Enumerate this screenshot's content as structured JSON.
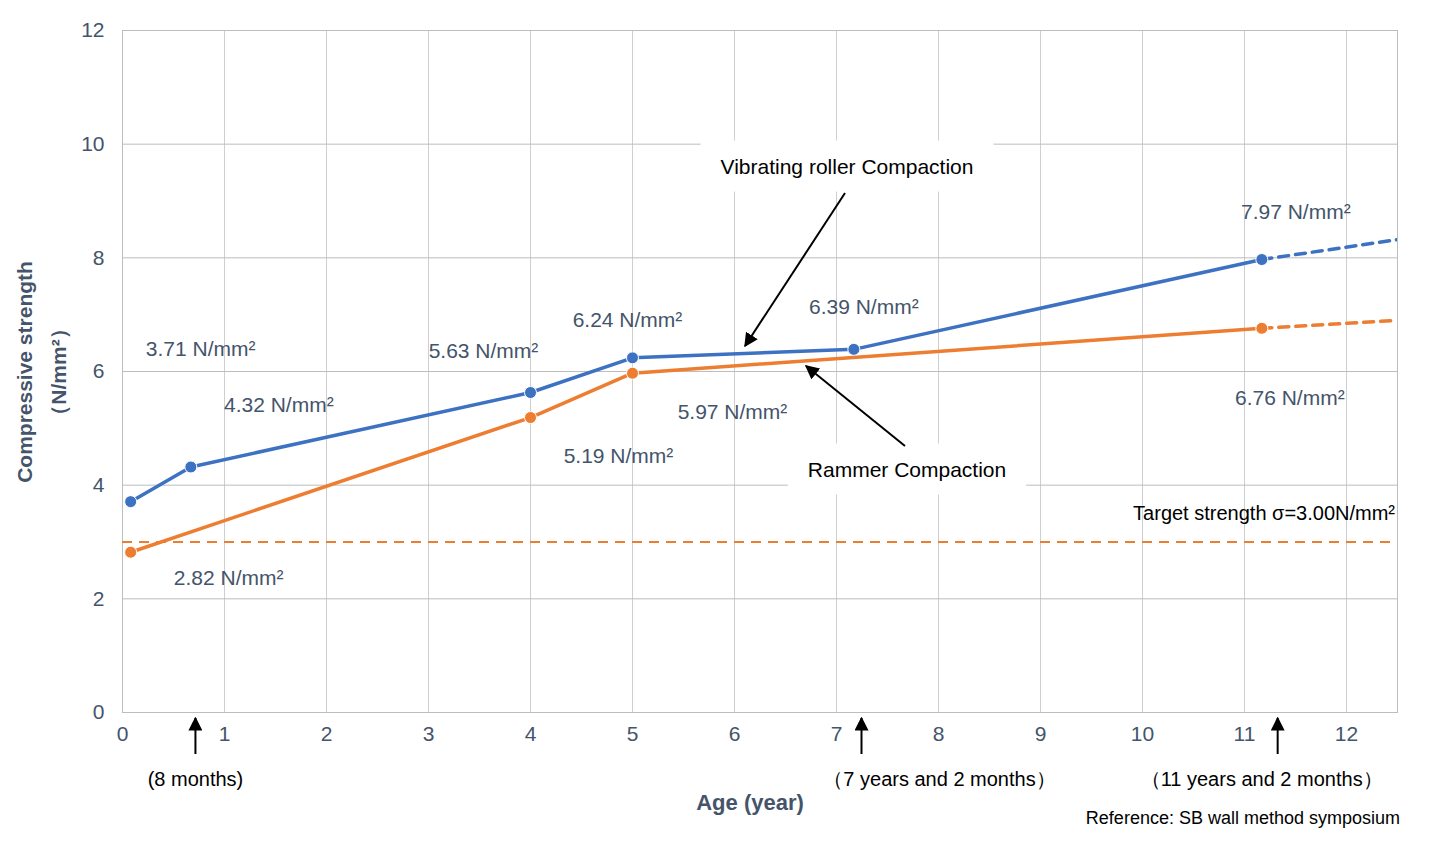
{
  "chart_data": {
    "type": "line",
    "x_label": "Age (year)",
    "y_label": "Compressive strength\n（N/mm²）",
    "xlim": [
      0,
      12.5
    ],
    "xticks": [
      0,
      1,
      2,
      3,
      4,
      5,
      6,
      7,
      8,
      9,
      10,
      11,
      12
    ],
    "ylim": [
      0,
      12
    ],
    "yticks": [
      0,
      2,
      4,
      6,
      8,
      10,
      12
    ],
    "grid": true,
    "data_labels": true,
    "series": [
      {
        "name": "Vibrating roller Compaction",
        "color": "#3d72c2",
        "marker": "circle",
        "line_style": "solid",
        "x": [
          0.08,
          0.67,
          4,
          5,
          7.17,
          11.17
        ],
        "values": [
          3.71,
          4.32,
          5.63,
          6.24,
          6.39,
          7.97
        ],
        "value_labels": [
          "3.71 N/mm²",
          "4.32 N/mm²",
          "5.63 N/mm²",
          "6.24 N/mm²",
          "6.39 N/mm²",
          "7.97 N/mm²"
        ],
        "trend": {
          "x": [
            11.17,
            12.5
          ],
          "values": [
            7.97,
            8.32
          ],
          "line_style": "dashed"
        }
      },
      {
        "name": "Rammer Compaction",
        "color": "#ed7d31",
        "marker": "circle",
        "line_style": "solid",
        "x": [
          0.08,
          4,
          5,
          11.17
        ],
        "values": [
          2.82,
          5.19,
          5.97,
          6.76
        ],
        "value_labels": [
          "2.82 N/mm²",
          "5.19 N/mm²",
          "5.97 N/mm²",
          "6.76 N/mm²"
        ],
        "trend": {
          "x": [
            11.17,
            12.5
          ],
          "values": [
            6.76,
            6.9
          ],
          "line_style": "dashed"
        }
      }
    ],
    "target": {
      "value": 3.0,
      "label": "Target strength σ=3.00N/mm²",
      "color": "#ed7d31",
      "line_style": "dashed"
    },
    "annotations": [
      {
        "x": 0.72,
        "text": "(8 months)"
      },
      {
        "x": 7.25,
        "text": "（7 years and 2 months）"
      },
      {
        "x": 11.33,
        "text": "（11 years and 2 months）"
      }
    ],
    "source": "Reference: SB wall method symposium"
  }
}
